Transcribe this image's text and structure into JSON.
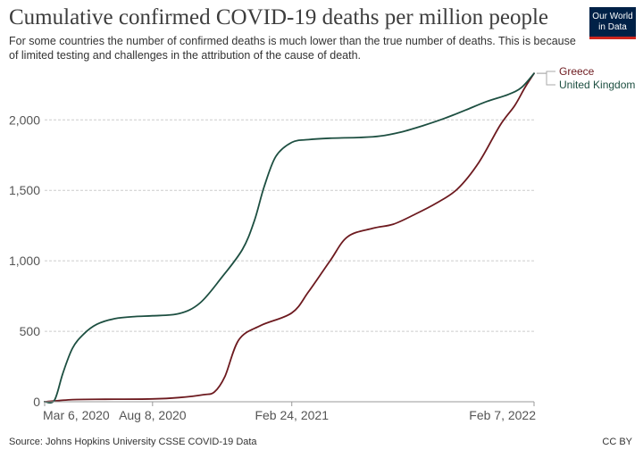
{
  "header": {
    "title": "Cumulative confirmed COVID-19 deaths per million people",
    "subtitle": "For some countries the number of confirmed deaths is much lower than the true number of deaths. This is because of limited testing and challenges in the attribution of the cause of death."
  },
  "logo": {
    "line1": "Our World",
    "line2": "in Data"
  },
  "footer": {
    "source": "Source: Johns Hopkins University CSSE COVID-19 Data",
    "license": "CC BY"
  },
  "chart_data": {
    "type": "line",
    "title": "Cumulative confirmed COVID-19 deaths per million people",
    "xlabel": "",
    "ylabel": "",
    "ylim": [
      0,
      2350
    ],
    "yticks": [
      0,
      500,
      1000,
      1500,
      2000
    ],
    "ytick_labels": [
      "0",
      "500",
      "1,000",
      "1,500",
      "2,000"
    ],
    "xlim": [
      "2020-03-06",
      "2022-02-07"
    ],
    "xticks": [
      "2020-03-06",
      "2020-08-08",
      "2021-02-24",
      "2022-02-07"
    ],
    "xtick_labels": [
      "Mar 6, 2020",
      "Aug 8, 2020",
      "Feb 24, 2021",
      "Feb 7, 2022"
    ],
    "grid": "horizontal-dashed",
    "legend": "right",
    "series": [
      {
        "name": "Greece",
        "color": "#6d1a1f",
        "x": [
          "2020-03-06",
          "2020-04-15",
          "2020-06-01",
          "2020-08-08",
          "2020-09-15",
          "2020-10-20",
          "2020-11-05",
          "2020-11-20",
          "2020-12-10",
          "2021-01-10",
          "2021-02-24",
          "2021-03-20",
          "2021-04-20",
          "2021-05-15",
          "2021-06-20",
          "2021-07-20",
          "2021-08-20",
          "2021-09-20",
          "2021-10-20",
          "2021-11-20",
          "2021-12-20",
          "2022-01-10",
          "2022-01-25",
          "2022-02-07"
        ],
        "values": [
          0,
          15,
          18,
          20,
          30,
          50,
          70,
          180,
          440,
          540,
          630,
          780,
          1000,
          1170,
          1230,
          1260,
          1330,
          1410,
          1510,
          1700,
          1960,
          2100,
          2230,
          2330
        ]
      },
      {
        "name": "United Kingdom",
        "color": "#1d4f41",
        "x": [
          "2020-03-06",
          "2020-03-20",
          "2020-04-01",
          "2020-04-15",
          "2020-05-01",
          "2020-05-20",
          "2020-06-15",
          "2020-07-15",
          "2020-08-08",
          "2020-09-15",
          "2020-10-15",
          "2020-11-15",
          "2020-12-15",
          "2021-01-01",
          "2021-01-15",
          "2021-02-01",
          "2021-02-24",
          "2021-03-20",
          "2021-04-20",
          "2021-06-01",
          "2021-07-01",
          "2021-08-01",
          "2021-09-01",
          "2021-10-01",
          "2021-11-01",
          "2021-12-01",
          "2022-01-01",
          "2022-01-20",
          "2022-02-07"
        ],
        "values": [
          0,
          10,
          200,
          380,
          480,
          550,
          590,
          605,
          610,
          625,
          700,
          880,
          1080,
          1280,
          1520,
          1740,
          1840,
          1860,
          1870,
          1875,
          1885,
          1915,
          1960,
          2010,
          2070,
          2130,
          2180,
          2230,
          2330
        ]
      }
    ]
  }
}
